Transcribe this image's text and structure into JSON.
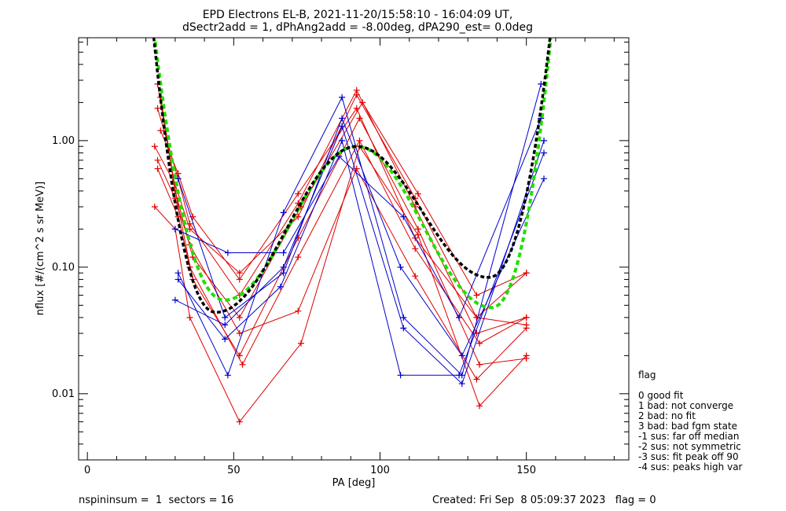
{
  "chart_data": {
    "type": "scatter",
    "title_line1": "EPD Electrons EL-B, 2021-11-20/15:58:10 - 16:04:09 UT,",
    "title_line2": "dSectr2add = 1, dPhAng2add = -8.00deg, dPA290_est=   0.0deg",
    "xlabel": "PA [deg]",
    "ylabel": "nflux [#/(cm^2 s sr MeV)]",
    "xlim": [
      -3,
      185
    ],
    "ylim": [
      0.003,
      6.5
    ],
    "y_scale": "log",
    "x_ticks": [
      0,
      50,
      100,
      150
    ],
    "x_tick_labels": [
      "0",
      "50",
      "100",
      "150"
    ],
    "y_ticks": [
      0.01,
      0.1,
      1.0
    ],
    "y_tick_labels": [
      "0.01",
      "0.10",
      "1.00"
    ],
    "colors": {
      "red": "#e00000",
      "blue": "#0000cc",
      "black": "#000000",
      "green": "#22dd00"
    },
    "series": [
      {
        "color": "red",
        "x": [
          23,
          30,
          35,
          52,
          72,
          92,
          112,
          133,
          150
        ],
        "y": [
          0.9,
          0.45,
          0.2,
          0.09,
          0.25,
          2.3,
          0.35,
          0.04,
          0.035
        ]
      },
      {
        "color": "red",
        "x": [
          24,
          31,
          35,
          52,
          72,
          92,
          112,
          133,
          150
        ],
        "y": [
          1.8,
          0.5,
          0.22,
          0.06,
          0.32,
          2.5,
          0.3,
          0.03,
          0.04
        ]
      },
      {
        "color": "red",
        "x": [
          25,
          31,
          36,
          52,
          72,
          93,
          113,
          134,
          150
        ],
        "y": [
          2.2,
          0.3,
          0.08,
          0.02,
          0.17,
          1.5,
          0.2,
          0.017,
          0.019
        ]
      },
      {
        "color": "red",
        "x": [
          23,
          30,
          35,
          52,
          73,
          93,
          113,
          134,
          150
        ],
        "y": [
          0.3,
          0.2,
          0.04,
          0.006,
          0.025,
          0.9,
          0.18,
          0.008,
          0.02
        ]
      },
      {
        "color": "red",
        "x": [
          24,
          30,
          35,
          52,
          72,
          92,
          112,
          133,
          150
        ],
        "y": [
          0.7,
          0.35,
          0.15,
          0.03,
          0.045,
          0.6,
          0.085,
          0.013,
          0.033
        ]
      },
      {
        "color": "red",
        "x": [
          25,
          31,
          36,
          52,
          72,
          92,
          112,
          133,
          150
        ],
        "y": [
          1.2,
          0.55,
          0.25,
          0.08,
          0.38,
          1.8,
          0.17,
          0.04,
          0.09
        ]
      },
      {
        "color": "red",
        "x": [
          24,
          31,
          35,
          53,
          72,
          93,
          112,
          134,
          150
        ],
        "y": [
          0.6,
          0.25,
          0.1,
          0.017,
          0.12,
          1.0,
          0.14,
          0.025,
          0.04
        ]
      },
      {
        "color": "red",
        "x": [
          24,
          30,
          36,
          52,
          73,
          94,
          113,
          133,
          150
        ],
        "y": [
          2.8,
          0.4,
          0.12,
          0.04,
          0.3,
          2.0,
          0.38,
          0.06,
          0.09
        ]
      },
      {
        "color": "blue",
        "x": [
          31,
          48,
          67,
          87,
          108,
          128,
          155
        ],
        "y": [
          0.09,
          0.014,
          0.27,
          2.2,
          0.04,
          0.014,
          2.8
        ]
      },
      {
        "color": "blue",
        "x": [
          30,
          47,
          67,
          87,
          108,
          128,
          156
        ],
        "y": [
          0.055,
          0.035,
          0.1,
          1.3,
          0.033,
          0.012,
          1.0
        ]
      },
      {
        "color": "blue",
        "x": [
          31,
          47,
          66,
          87,
          107,
          127,
          156
        ],
        "y": [
          0.08,
          0.027,
          0.07,
          1.0,
          0.014,
          0.014,
          0.8
        ]
      },
      {
        "color": "blue",
        "x": [
          30,
          48,
          67,
          86,
          108,
          127,
          155
        ],
        "y": [
          0.2,
          0.13,
          0.13,
          0.75,
          0.25,
          0.04,
          1.5
        ]
      },
      {
        "color": "blue",
        "x": [
          31,
          47,
          67,
          87,
          107,
          128,
          156
        ],
        "y": [
          0.5,
          0.04,
          0.09,
          1.5,
          0.1,
          0.02,
          0.5
        ]
      }
    ],
    "fit_black": {
      "style": "dashed",
      "peak_pa": 92,
      "peak_value": 0.9,
      "min1_pa": 44,
      "min1_value": 0.044,
      "min2_pa": 137,
      "min2_value": 0.083
    },
    "fit_green": {
      "style": "dashed",
      "peak_pa": 92,
      "peak_value": 0.9,
      "min1_pa": 47,
      "min1_value": 0.055,
      "min2_pa": 138,
      "min2_value": 0.048
    },
    "legend_title": "flag",
    "legend": [
      " 0 good fit",
      " 1 bad: not converge",
      " 2 bad: no fit",
      " 3 bad: bad fgm state",
      "-1 sus: far off median",
      "-2 sus: not symmetric",
      "-3 sus: fit peak off 90",
      "-4 sus: peaks high var"
    ],
    "footer_left": "nspininsum =  1  sectors = 16",
    "footer_right": "Created: Fri Sep  8 05:09:37 2023   flag = 0"
  }
}
